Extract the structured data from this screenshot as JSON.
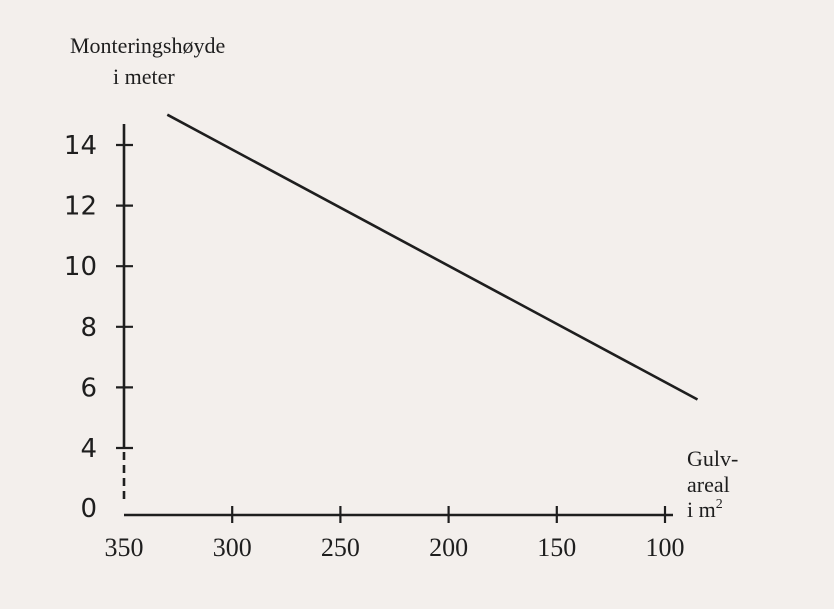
{
  "chart_data": {
    "type": "line",
    "ylabel": [
      "Monteringshøyde",
      "i meter"
    ],
    "xlabel": [
      "Gulv-",
      "areal",
      "i m"
    ],
    "xlabel_superscript": "2",
    "x_ticks": [
      350,
      300,
      250,
      200,
      150,
      100
    ],
    "y_ticks": [
      0,
      4,
      6,
      8,
      10,
      12,
      14
    ],
    "xlim": [
      350,
      100
    ],
    "x_reversed": true,
    "y_axis_break": [
      0,
      4
    ],
    "grid": false,
    "series": [
      {
        "x": [
          330,
          85
        ],
        "y": [
          15,
          5.6
        ]
      }
    ]
  }
}
